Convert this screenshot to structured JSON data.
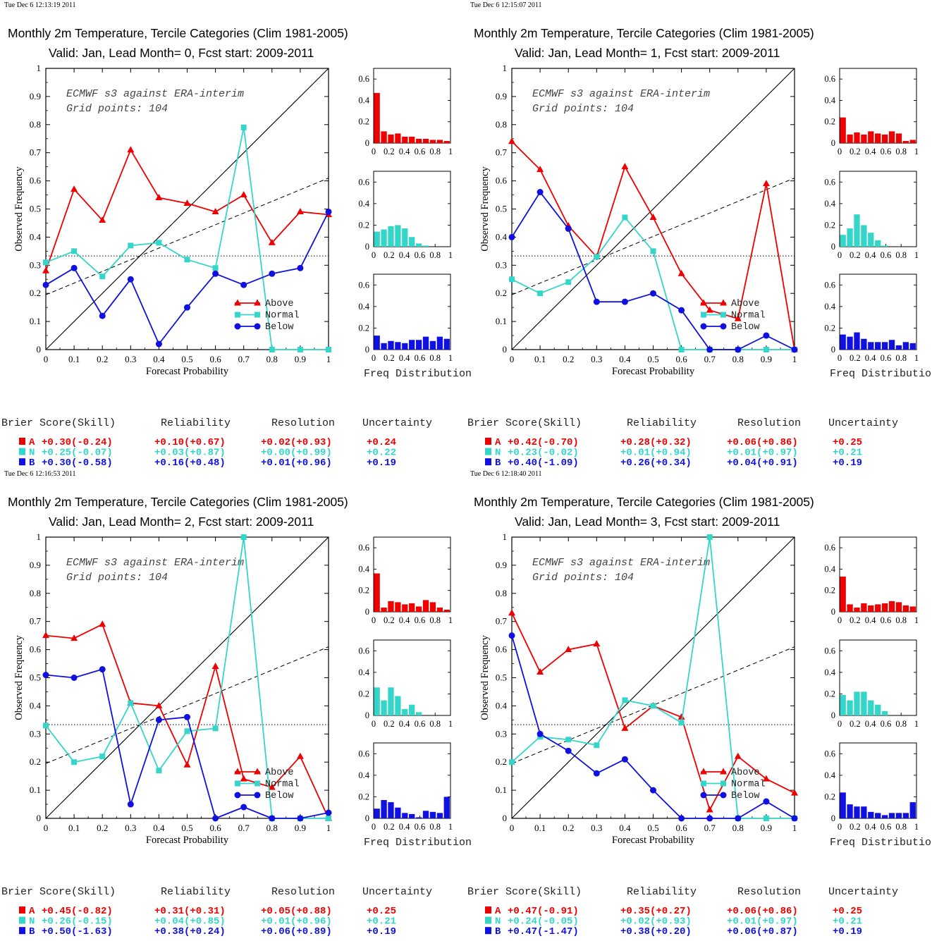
{
  "colors": {
    "above": "#ee0000",
    "normal": "#33d6c8",
    "below": "#1010e0",
    "axis": "#000000"
  },
  "chart_data": [
    {
      "type": "line",
      "timestamp": "Tue Dec  6 12:13:19 2011",
      "title": "Monthly 2m Temperature, Tercile Categories (Clim 1981-2005)",
      "subtitle": "Valid: Jan, Lead Month= 0, Fcst start: 2009-2011",
      "annotation": [
        "ECMWF s3 against ERA-interim",
        "Grid points:  104"
      ],
      "xlabel": "Forecast Probability",
      "ylabel": "Observed Frequency",
      "xlim": [
        0,
        1
      ],
      "ylim": [
        0,
        1
      ],
      "ticks": [
        "0",
        "0.1",
        "0.2",
        "0.3",
        "0.4",
        "0.5",
        "0.6",
        "0.7",
        "0.8",
        "0.9",
        "1"
      ],
      "x": [
        0,
        0.1,
        0.2,
        0.3,
        0.4,
        0.5,
        0.6,
        0.7,
        0.8,
        0.9,
        1.0
      ],
      "series": [
        {
          "name": "Above",
          "values": [
            0.28,
            0.57,
            0.46,
            0.71,
            0.54,
            0.52,
            0.49,
            0.55,
            0.38,
            0.49,
            0.48
          ]
        },
        {
          "name": "Normal",
          "values": [
            0.31,
            0.35,
            0.26,
            0.37,
            0.38,
            0.32,
            0.29,
            0.79,
            0,
            0,
            0
          ]
        },
        {
          "name": "Below",
          "values": [
            0.23,
            0.29,
            0.12,
            0.25,
            0.02,
            0.15,
            0.27,
            0.23,
            0.27,
            0.29,
            0.49
          ]
        }
      ],
      "reference": {
        "climatology": 0.333,
        "skill_line": [
          [
            0,
            0.195
          ],
          [
            1,
            0.61
          ]
        ]
      },
      "legend": "bottom-right",
      "hist": {
        "xlabel": "Freq Distribution",
        "yticks": [
          "0",
          "0.2",
          "0.4",
          "0.6"
        ],
        "xticks": [
          "0",
          "0.2",
          "0.4",
          "0.6",
          "0.8",
          "1"
        ],
        "above": [
          0.47,
          0.11,
          0.08,
          0.09,
          0.06,
          0.06,
          0.04,
          0.04,
          0.03,
          0.03,
          0.02
        ],
        "normal": [
          0.14,
          0.16,
          0.19,
          0.2,
          0.17,
          0.09,
          0.03,
          0.01,
          0,
          0,
          0
        ],
        "below": [
          0.13,
          0.06,
          0.08,
          0.07,
          0.06,
          0.09,
          0.09,
          0.12,
          0.08,
          0.12,
          0.1
        ]
      },
      "scores": {
        "headers": [
          "Brier Score(Skill)",
          "Reliability",
          "Resolution",
          "Uncertainty"
        ],
        "rows": [
          {
            "label": "A",
            "brier": "+0.30(-0.24)",
            "reliability": "+0.10(+0.67)",
            "resolution": "+0.02(+0.93)",
            "uncertainty": "+0.24"
          },
          {
            "label": "N",
            "brier": "+0.25(-0.07)",
            "reliability": "+0.03(+0.87)",
            "resolution": "+0.00(+0.99)",
            "uncertainty": "+0.22"
          },
          {
            "label": "B",
            "brier": "+0.30(-0.58)",
            "reliability": "+0.16(+0.48)",
            "resolution": "+0.01(+0.96)",
            "uncertainty": "+0.19"
          }
        ]
      }
    },
    {
      "type": "line",
      "timestamp": "Tue Dec  6 12:15:07 2011",
      "title": "Monthly 2m Temperature, Tercile Categories (Clim 1981-2005)",
      "subtitle": "Valid: Jan, Lead Month= 1, Fcst start: 2009-2011",
      "annotation": [
        "ECMWF s3 against ERA-interim",
        "Grid points:  104"
      ],
      "xlabel": "Forecast Probability",
      "ylabel": "Observed Frequency",
      "xlim": [
        0,
        1
      ],
      "ylim": [
        0,
        1
      ],
      "ticks": [
        "0",
        "0.1",
        "0.2",
        "0.3",
        "0.4",
        "0.5",
        "0.6",
        "0.7",
        "0.8",
        "0.9",
        "1"
      ],
      "x": [
        0,
        0.1,
        0.2,
        0.3,
        0.4,
        0.5,
        0.6,
        0.7,
        0.8,
        0.9,
        1.0
      ],
      "series": [
        {
          "name": "Above",
          "values": [
            0.74,
            0.64,
            0.44,
            0.33,
            0.65,
            0.47,
            0.27,
            0.14,
            0.11,
            0.59,
            0
          ]
        },
        {
          "name": "Normal",
          "values": [
            0.25,
            0.2,
            0.24,
            0.33,
            0.47,
            0.35,
            0,
            0,
            0,
            0,
            0
          ]
        },
        {
          "name": "Below",
          "values": [
            0.4,
            0.56,
            0.43,
            0.17,
            0.17,
            0.2,
            0.14,
            0,
            0,
            0.05,
            0
          ]
        }
      ],
      "reference": {
        "climatology": 0.333,
        "skill_line": [
          [
            0,
            0.195
          ],
          [
            1,
            0.61
          ]
        ]
      },
      "legend": "bottom-right",
      "hist": {
        "xlabel": "Freq Distribution",
        "yticks": [
          "0",
          "0.2",
          "0.4",
          "0.6"
        ],
        "xticks": [
          "0",
          "0.2",
          "0.4",
          "0.6",
          "0.8",
          "1"
        ],
        "above": [
          0.24,
          0.08,
          0.1,
          0.08,
          0.11,
          0.09,
          0.08,
          0.11,
          0.09,
          0.02,
          0.03
        ],
        "normal": [
          0.11,
          0.17,
          0.3,
          0.2,
          0.13,
          0.06,
          0.01,
          0,
          0,
          0,
          0
        ],
        "below": [
          0.14,
          0.12,
          0.16,
          0.1,
          0.07,
          0.07,
          0.07,
          0.09,
          0.04,
          0.07,
          0.06
        ]
      },
      "scores": {
        "headers": [
          "Brier Score(Skill)",
          "Reliability",
          "Resolution",
          "Uncertainty"
        ],
        "rows": [
          {
            "label": "A",
            "brier": "+0.42(-0.70)",
            "reliability": "+0.28(+0.32)",
            "resolution": "+0.06(+0.86)",
            "uncertainty": "+0.25"
          },
          {
            "label": "N",
            "brier": "+0.23(-0.02)",
            "reliability": "+0.01(+0.94)",
            "resolution": "+0.01(+0.97)",
            "uncertainty": "+0.21"
          },
          {
            "label": "B",
            "brier": "+0.40(-1.09)",
            "reliability": "+0.26(+0.34)",
            "resolution": "+0.04(+0.91)",
            "uncertainty": "+0.19"
          }
        ]
      }
    },
    {
      "type": "line",
      "timestamp": "Tue Dec  6 12:16:53 2011",
      "title": "Monthly 2m Temperature, Tercile Categories (Clim 1981-2005)",
      "subtitle": "Valid: Jan, Lead Month= 2, Fcst start: 2009-2011",
      "annotation": [
        "ECMWF s3 against ERA-interim",
        "Grid points:  104"
      ],
      "xlabel": "Forecast Probability",
      "ylabel": "Observed Frequency",
      "xlim": [
        0,
        1
      ],
      "ylim": [
        0,
        1
      ],
      "ticks": [
        "0",
        "0.1",
        "0.2",
        "0.3",
        "0.4",
        "0.5",
        "0.6",
        "0.7",
        "0.8",
        "0.9",
        "1"
      ],
      "x": [
        0,
        0.1,
        0.2,
        0.3,
        0.4,
        0.5,
        0.6,
        0.7,
        0.8,
        0.9,
        1.0
      ],
      "series": [
        {
          "name": "Above",
          "values": [
            0.65,
            0.64,
            0.69,
            0.41,
            0.4,
            0.19,
            0.54,
            0.14,
            0.11,
            0.22,
            0
          ]
        },
        {
          "name": "Normal",
          "values": [
            0.33,
            0.2,
            0.22,
            0.41,
            0.17,
            0.31,
            0.32,
            1.0,
            0,
            0,
            0
          ]
        },
        {
          "name": "Below",
          "values": [
            0.51,
            0.5,
            0.53,
            0.05,
            0.35,
            0.36,
            0,
            0.04,
            0,
            0,
            0.02
          ]
        }
      ],
      "reference": {
        "climatology": 0.333,
        "skill_line": [
          [
            0,
            0.195
          ],
          [
            1,
            0.61
          ]
        ]
      },
      "legend": "bottom-right",
      "hist": {
        "xlabel": "Freq Distribution",
        "yticks": [
          "0",
          "0.2",
          "0.4",
          "0.6"
        ],
        "xticks": [
          "0",
          "0.2",
          "0.4",
          "0.6",
          "0.8",
          "1"
        ],
        "above": [
          0.36,
          0.04,
          0.1,
          0.09,
          0.07,
          0.08,
          0.05,
          0.11,
          0.09,
          0.04,
          0.02
        ],
        "normal": [
          0.26,
          0.14,
          0.26,
          0.18,
          0.06,
          0.1,
          0.03,
          0,
          0,
          0,
          0
        ],
        "below": [
          0.09,
          0.17,
          0.15,
          0.1,
          0.05,
          0.04,
          0.01,
          0.07,
          0.06,
          0.05,
          0.2
        ]
      },
      "scores": {
        "headers": [
          "Brier Score(Skill)",
          "Reliability",
          "Resolution",
          "Uncertainty"
        ],
        "rows": [
          {
            "label": "A",
            "brier": "+0.45(-0.82)",
            "reliability": "+0.31(+0.31)",
            "resolution": "+0.05(+0.88)",
            "uncertainty": "+0.25"
          },
          {
            "label": "N",
            "brier": "+0.26(-0.15)",
            "reliability": "+0.04(+0.85)",
            "resolution": "+0.01(+0.96)",
            "uncertainty": "+0.21"
          },
          {
            "label": "B",
            "brier": "+0.50(-1.63)",
            "reliability": "+0.38(+0.24)",
            "resolution": "+0.06(+0.89)",
            "uncertainty": "+0.19"
          }
        ]
      }
    },
    {
      "type": "line",
      "timestamp": "Tue Dec  6 12:18:40 2011",
      "title": "Monthly 2m Temperature, Tercile Categories (Clim 1981-2005)",
      "subtitle": "Valid: Jan, Lead Month= 3, Fcst start: 2009-2011",
      "annotation": [
        "ECMWF s3 against ERA-interim",
        "Grid points:  104"
      ],
      "xlabel": "Forecast Probability",
      "ylabel": "Observed Frequency",
      "xlim": [
        0,
        1
      ],
      "ylim": [
        0,
        1
      ],
      "ticks": [
        "0",
        "0.1",
        "0.2",
        "0.3",
        "0.4",
        "0.5",
        "0.6",
        "0.7",
        "0.8",
        "0.9",
        "1"
      ],
      "x": [
        0,
        0.1,
        0.2,
        0.3,
        0.4,
        0.5,
        0.6,
        0.7,
        0.8,
        0.9,
        1.0
      ],
      "series": [
        {
          "name": "Above",
          "values": [
            0.73,
            0.52,
            0.6,
            0.62,
            0.32,
            0.4,
            0.36,
            0.03,
            0.22,
            0.14,
            0.09
          ]
        },
        {
          "name": "Normal",
          "values": [
            0.2,
            0.29,
            0.28,
            0.26,
            0.42,
            0.4,
            0.34,
            1.0,
            0,
            0,
            0
          ]
        },
        {
          "name": "Below",
          "values": [
            0.65,
            0.3,
            0.24,
            0.16,
            0.21,
            0.1,
            0,
            0,
            0,
            0.06,
            0
          ]
        }
      ],
      "reference": {
        "climatology": 0.333,
        "skill_line": [
          [
            0,
            0.195
          ],
          [
            1,
            0.61
          ]
        ]
      },
      "legend": "bottom-right",
      "hist": {
        "xlabel": "Freq Distribution",
        "yticks": [
          "0",
          "0.2",
          "0.4",
          "0.6"
        ],
        "xticks": [
          "0",
          "0.2",
          "0.4",
          "0.6",
          "0.8",
          "1"
        ],
        "above": [
          0.33,
          0.07,
          0.04,
          0.08,
          0.06,
          0.07,
          0.08,
          0.1,
          0.09,
          0.06,
          0.05
        ],
        "normal": [
          0.19,
          0.14,
          0.22,
          0.22,
          0.14,
          0.1,
          0.04,
          0,
          0,
          0,
          0
        ],
        "below": [
          0.24,
          0.13,
          0.11,
          0.11,
          0.06,
          0.05,
          0.03,
          0.05,
          0.05,
          0.05,
          0.15
        ]
      },
      "scores": {
        "headers": [
          "Brier Score(Skill)",
          "Reliability",
          "Resolution",
          "Uncertainty"
        ],
        "rows": [
          {
            "label": "A",
            "brier": "+0.47(-0.91)",
            "reliability": "+0.35(+0.27)",
            "resolution": "+0.06(+0.86)",
            "uncertainty": "+0.25"
          },
          {
            "label": "N",
            "brier": "+0.24(-0.05)",
            "reliability": "+0.02(+0.93)",
            "resolution": "+0.01(+0.97)",
            "uncertainty": "+0.21"
          },
          {
            "label": "B",
            "brier": "+0.47(-1.47)",
            "reliability": "+0.38(+0.20)",
            "resolution": "+0.06(+0.87)",
            "uncertainty": "+0.19"
          }
        ]
      }
    }
  ]
}
